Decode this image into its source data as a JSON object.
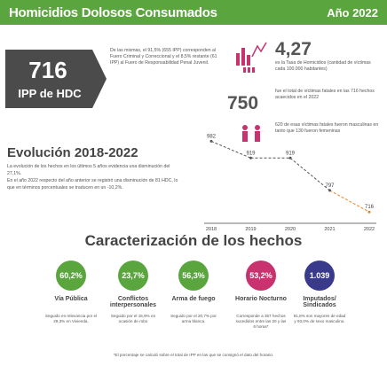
{
  "banner": {
    "title": "Homicidios Dolosos Consumados",
    "year": "Año 2022"
  },
  "ipp": {
    "number": "716",
    "label": "IPP de HDC",
    "description": "De las mismas, el 91,5% (655 IPP) corresponden al Fuero Criminal y Correccional y el 8,5% restante (61 IPP) al Fuero de Responsabilidad Penal Juvenil."
  },
  "rate": {
    "value": "4,27",
    "description": "es la Tasa de Homicidios (cantidad de víctimas cada 100.000 habitantes)"
  },
  "fatal": {
    "number": "750",
    "description": "fue el total de víctimas fatales en las 716 hechos acaecidos en el 2022"
  },
  "men": {
    "description": "620 de esas víctimas fatales fueron masculinas en tanto que 130 fueron femeninas"
  },
  "evolution": {
    "title": "Evolución 2018-2022",
    "text1": "La evolución de los hechos en los últimos 5 años evidencia una disminución del 27,1%.",
    "text2": "En el año 2022 respecto del año anterior se registró una disminución de 81 HDC, lo que en términos porcentuales se traducen en un -10,2%."
  },
  "chart_data": {
    "type": "line",
    "x": [
      "2018",
      "2019",
      "2020",
      "2021",
      "2022"
    ],
    "values": [
      982,
      919,
      919,
      797,
      716
    ],
    "labels": [
      "982",
      "919",
      "919",
      "797",
      "716"
    ]
  },
  "caracterizacion": {
    "title": "Caracterización de los hechos",
    "items": [
      {
        "percent": "60,2%",
        "label": "Vía Pública",
        "desc": "Seguido en relevancia por el 29,3% en Vivienda.",
        "color": "#5aa53e"
      },
      {
        "percent": "23,7%",
        "label": "Conflictos interpersonales",
        "desc": "Seguido por el 15,9% en ocasión de robo",
        "color": "#5aa53e"
      },
      {
        "percent": "56,3%",
        "label": "Arma de fuego",
        "desc": "Seguido por el 20,7% por arma blanca.",
        "color": "#5aa53e"
      },
      {
        "percent": "53,2%",
        "label": "Horario Nocturno",
        "desc": "Corresponde a 357 hechos sucedidos entre las 20 y las 6 horas*",
        "color": "#c8326e"
      },
      {
        "percent": "1.039",
        "label": "Imputados/ Sindicados",
        "desc": "91,8% son mayores de edad y 93,0% de sexo masculino.",
        "color": "#3a3a8c"
      }
    ]
  },
  "footnote": "*El porcentaje se calculó sobre el total de IPP en las que se consignó el dato del horario."
}
